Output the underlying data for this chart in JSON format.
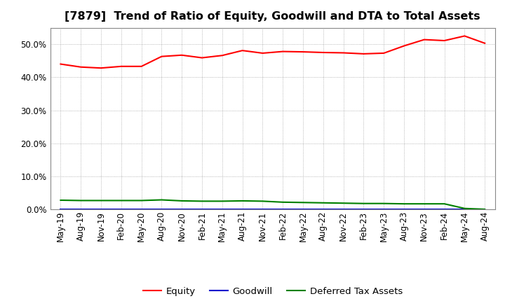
{
  "title": "[7879]  Trend of Ratio of Equity, Goodwill and DTA to Total Assets",
  "title_fontsize": 11.5,
  "x_labels": [
    "May-19",
    "Aug-19",
    "Nov-19",
    "Feb-20",
    "May-20",
    "Aug-20",
    "Nov-20",
    "Feb-21",
    "May-21",
    "Aug-21",
    "Nov-21",
    "Feb-22",
    "May-22",
    "Aug-22",
    "Nov-22",
    "Feb-23",
    "May-23",
    "Aug-23",
    "Nov-23",
    "Feb-24",
    "May-24",
    "Aug-24"
  ],
  "equity": [
    44.0,
    43.1,
    42.8,
    43.3,
    43.3,
    46.3,
    46.7,
    45.9,
    46.6,
    48.1,
    47.3,
    47.8,
    47.7,
    47.5,
    47.4,
    47.1,
    47.3,
    49.5,
    51.4,
    51.1,
    52.5,
    50.3
  ],
  "goodwill": [
    0.05,
    0.05,
    0.05,
    0.05,
    0.05,
    0.05,
    0.05,
    0.05,
    0.05,
    0.05,
    0.05,
    0.05,
    0.05,
    0.05,
    0.05,
    0.05,
    0.05,
    0.05,
    0.05,
    0.05,
    0.05,
    0.05
  ],
  "dta": [
    2.8,
    2.7,
    2.7,
    2.7,
    2.7,
    2.9,
    2.6,
    2.5,
    2.5,
    2.6,
    2.5,
    2.2,
    2.1,
    2.0,
    1.9,
    1.8,
    1.8,
    1.7,
    1.7,
    1.7,
    0.3,
    0.05
  ],
  "equity_color": "#ff0000",
  "goodwill_color": "#0000cc",
  "dta_color": "#008000",
  "bg_color": "#ffffff",
  "plot_bg_color": "#ffffff",
  "grid_color": "#999999",
  "ylim": [
    0,
    55
  ],
  "yticks": [
    0,
    10,
    20,
    30,
    40,
    50
  ],
  "legend_labels": [
    "Equity",
    "Goodwill",
    "Deferred Tax Assets"
  ],
  "tick_fontsize": 8.5,
  "legend_fontsize": 9.5
}
